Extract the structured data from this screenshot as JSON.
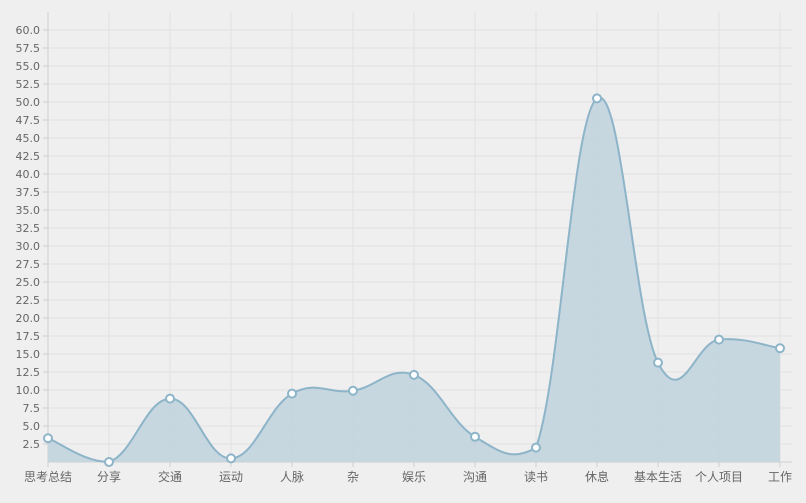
{
  "chart_data": {
    "type": "area",
    "categories": [
      "思考总结",
      "分享",
      "交通",
      "运动",
      "人脉",
      "杂",
      "娱乐",
      "沟通",
      "读书",
      "休息",
      "基本生活",
      "个人项目",
      "工作"
    ],
    "series": [
      {
        "values": [
          3.3,
          0.0,
          8.8,
          0.5,
          9.5,
          9.9,
          12.1,
          3.5,
          2.0,
          50.5,
          13.8,
          17.0,
          15.8
        ]
      }
    ],
    "ylim": [
      0,
      62.5
    ],
    "y_ticks": [
      "2.5",
      "5.0",
      "7.5",
      "10.0",
      "12.5",
      "15.0",
      "17.5",
      "20.0",
      "22.5",
      "25.0",
      "27.5",
      "30.0",
      "32.5",
      "35.0",
      "37.5",
      "40.0",
      "42.5",
      "45.0",
      "47.5",
      "50.0",
      "52.5",
      "55.0",
      "57.5",
      "60.0"
    ],
    "grid": true,
    "smooth": true,
    "colors": {
      "fill": "#c3d5de",
      "line": "#8db4c8",
      "point_stroke": "#8db4c8",
      "point_fill": "#ffffff",
      "grid": "#e2e2e2",
      "axis": "#cfcfcf",
      "label": "#666666"
    }
  }
}
